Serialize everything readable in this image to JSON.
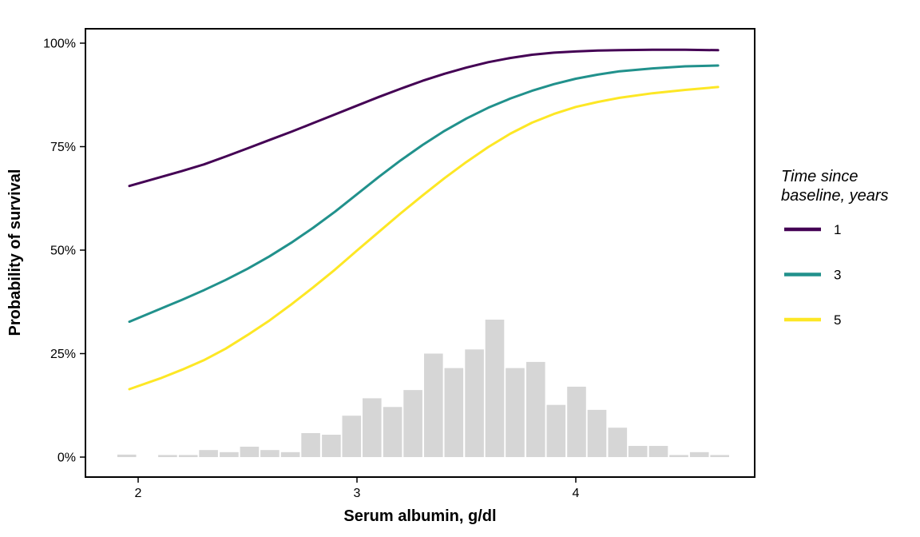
{
  "page": {
    "background": "#ffffff",
    "panel_border_color": "#000000"
  },
  "legend": {
    "title_lines": [
      "Time since",
      "baseline, years"
    ],
    "entries": [
      {
        "label": "1",
        "color": "#440154"
      },
      {
        "label": "3",
        "color": "#21918c"
      },
      {
        "label": "5",
        "color": "#fde725"
      }
    ]
  },
  "chart_data": {
    "type": "line",
    "title": "",
    "xlabel": "Serum albumin, g/dl",
    "ylabel": "Probability of survival",
    "xlim": [
      1.76,
      4.82
    ],
    "ylim": [
      -4.8,
      103.5
    ],
    "grid": false,
    "legend_title": "Time since baseline, years",
    "legend_position": "right",
    "x_ticks": [
      2,
      3,
      4
    ],
    "x_tick_labels": [
      "2",
      "3",
      "4"
    ],
    "y_ticks": [
      0,
      25,
      50,
      75,
      100
    ],
    "y_tick_labels": [
      "0%",
      "25%",
      "50%",
      "75%",
      "100%"
    ],
    "series": [
      {
        "name": "1",
        "color": "#440154",
        "points": [
          [
            1.96,
            65.5
          ],
          [
            2.1,
            67.6
          ],
          [
            2.2,
            69.1
          ],
          [
            2.3,
            70.7
          ],
          [
            2.4,
            72.6
          ],
          [
            2.5,
            74.6
          ],
          [
            2.6,
            76.6
          ],
          [
            2.7,
            78.6
          ],
          [
            2.8,
            80.7
          ],
          [
            2.9,
            82.8
          ],
          [
            3.0,
            84.9
          ],
          [
            3.1,
            87.0
          ],
          [
            3.2,
            89.0
          ],
          [
            3.3,
            90.9
          ],
          [
            3.4,
            92.6
          ],
          [
            3.5,
            94.1
          ],
          [
            3.6,
            95.4
          ],
          [
            3.7,
            96.4
          ],
          [
            3.8,
            97.2
          ],
          [
            3.9,
            97.7
          ],
          [
            4.0,
            98.0
          ],
          [
            4.1,
            98.2
          ],
          [
            4.2,
            98.3
          ],
          [
            4.35,
            98.4
          ],
          [
            4.5,
            98.4
          ],
          [
            4.65,
            98.3
          ]
        ]
      },
      {
        "name": "3",
        "color": "#21918c",
        "points": [
          [
            1.96,
            32.7
          ],
          [
            2.1,
            35.8
          ],
          [
            2.2,
            38.0
          ],
          [
            2.3,
            40.3
          ],
          [
            2.4,
            42.8
          ],
          [
            2.5,
            45.5
          ],
          [
            2.6,
            48.5
          ],
          [
            2.7,
            51.8
          ],
          [
            2.8,
            55.4
          ],
          [
            2.9,
            59.3
          ],
          [
            3.0,
            63.5
          ],
          [
            3.1,
            67.7
          ],
          [
            3.2,
            71.7
          ],
          [
            3.3,
            75.4
          ],
          [
            3.4,
            78.8
          ],
          [
            3.5,
            81.8
          ],
          [
            3.6,
            84.4
          ],
          [
            3.7,
            86.6
          ],
          [
            3.8,
            88.5
          ],
          [
            3.9,
            90.1
          ],
          [
            4.0,
            91.4
          ],
          [
            4.1,
            92.4
          ],
          [
            4.2,
            93.2
          ],
          [
            4.35,
            93.9
          ],
          [
            4.5,
            94.4
          ],
          [
            4.65,
            94.6
          ]
        ]
      },
      {
        "name": "5",
        "color": "#fde725",
        "points": [
          [
            1.96,
            16.4
          ],
          [
            2.1,
            19.0
          ],
          [
            2.2,
            21.1
          ],
          [
            2.3,
            23.4
          ],
          [
            2.4,
            26.2
          ],
          [
            2.5,
            29.5
          ],
          [
            2.6,
            33.0
          ],
          [
            2.7,
            36.9
          ],
          [
            2.8,
            41.0
          ],
          [
            2.9,
            45.3
          ],
          [
            3.0,
            49.9
          ],
          [
            3.1,
            54.4
          ],
          [
            3.2,
            58.9
          ],
          [
            3.3,
            63.2
          ],
          [
            3.4,
            67.4
          ],
          [
            3.5,
            71.3
          ],
          [
            3.6,
            74.9
          ],
          [
            3.7,
            78.1
          ],
          [
            3.8,
            80.8
          ],
          [
            3.9,
            82.9
          ],
          [
            4.0,
            84.6
          ],
          [
            4.1,
            85.8
          ],
          [
            4.2,
            86.8
          ],
          [
            4.35,
            87.9
          ],
          [
            4.5,
            88.7
          ],
          [
            4.65,
            89.4
          ]
        ]
      }
    ],
    "histogram": {
      "color": "#d6d6d6",
      "binwidth": 0.0934,
      "unit": "percent of subjects",
      "bars": [
        {
          "x": 1.901,
          "h": 0.6
        },
        {
          "x": 2.088,
          "h": 0.5
        },
        {
          "x": 2.182,
          "h": 0.5
        },
        {
          "x": 2.275,
          "h": 1.7
        },
        {
          "x": 2.369,
          "h": 1.2
        },
        {
          "x": 2.462,
          "h": 2.5
        },
        {
          "x": 2.555,
          "h": 1.7
        },
        {
          "x": 2.649,
          "h": 1.2
        },
        {
          "x": 2.742,
          "h": 5.8
        },
        {
          "x": 2.836,
          "h": 5.4
        },
        {
          "x": 2.929,
          "h": 10.0
        },
        {
          "x": 3.022,
          "h": 14.2
        },
        {
          "x": 3.116,
          "h": 12.1
        },
        {
          "x": 3.209,
          "h": 16.2
        },
        {
          "x": 3.303,
          "h": 25.0
        },
        {
          "x": 3.396,
          "h": 21.5
        },
        {
          "x": 3.49,
          "h": 26.0
        },
        {
          "x": 3.583,
          "h": 33.2
        },
        {
          "x": 3.676,
          "h": 21.5
        },
        {
          "x": 3.77,
          "h": 23.0
        },
        {
          "x": 3.863,
          "h": 12.6
        },
        {
          "x": 3.957,
          "h": 17.0
        },
        {
          "x": 4.05,
          "h": 11.4
        },
        {
          "x": 4.144,
          "h": 7.1
        },
        {
          "x": 4.237,
          "h": 2.7
        },
        {
          "x": 4.331,
          "h": 2.7
        },
        {
          "x": 4.424,
          "h": 0.5
        },
        {
          "x": 4.518,
          "h": 1.2
        },
        {
          "x": 4.611,
          "h": 0.5
        }
      ]
    }
  }
}
